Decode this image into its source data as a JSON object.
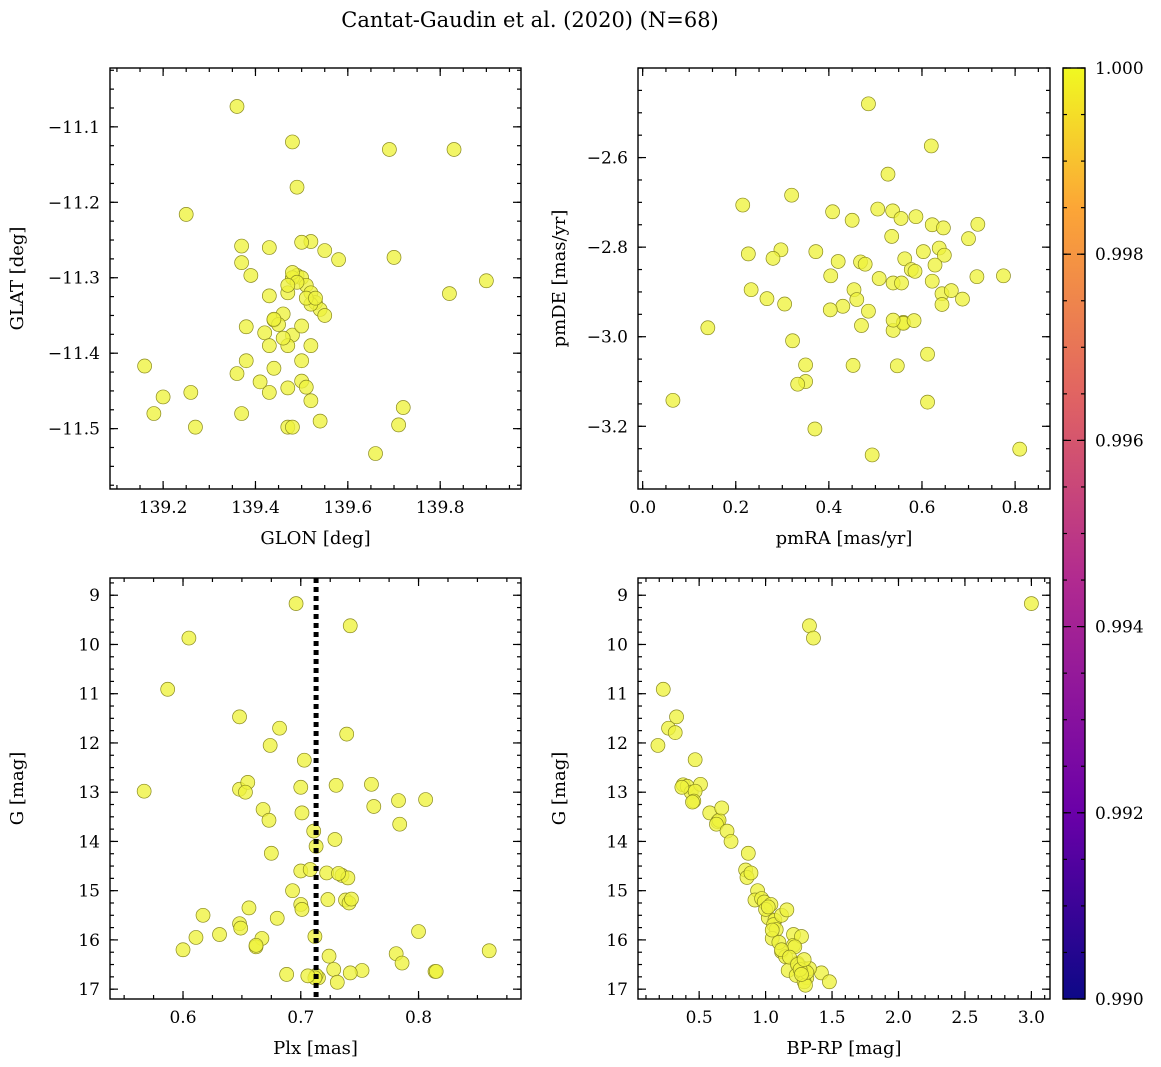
{
  "figure": {
    "title": "Cantat-Gaudin et al. (2020) (N=68)"
  },
  "colors": {
    "point_fill": "#eef23c",
    "point_edge": "#8a8a20",
    "vline": "#000000",
    "colormap": [
      "#0d0887",
      "#6a00a8",
      "#b12a90",
      "#e16462",
      "#fca636",
      "#f0f921"
    ]
  },
  "chart_data": [
    {
      "type": "scatter",
      "name": "sky",
      "xlabel": "GLON [deg]",
      "ylabel": "GLAT [deg]",
      "xlim": [
        139.085,
        139.975
      ],
      "ylim": [
        -11.58,
        -11.022
      ],
      "xticks": [
        139.2,
        139.4,
        139.6,
        139.8
      ],
      "xticklabels": [
        "139.2",
        "139.4",
        "139.6",
        "139.8"
      ],
      "xminor": 0.05,
      "yticks": [
        -11.1,
        -11.2,
        -11.3,
        -11.4,
        -11.5
      ],
      "yticklabels": [
        "−11.1",
        "−11.2",
        "−11.3",
        "−11.4",
        "−11.5"
      ],
      "yminor": 0.025,
      "invert_y": false,
      "x": [
        139.36,
        139.48,
        139.69,
        139.83,
        139.49,
        139.25,
        139.37,
        139.43,
        139.52,
        139.5,
        139.58,
        139.55,
        139.7,
        139.37,
        139.39,
        139.48,
        139.49,
        139.5,
        139.51,
        139.52,
        139.47,
        139.53,
        139.48,
        139.43,
        139.82,
        139.9,
        139.54,
        139.55,
        139.44,
        139.42,
        139.38,
        139.46,
        139.48,
        139.45,
        139.43,
        139.47,
        139.52,
        139.5,
        139.38,
        139.16,
        139.36,
        139.44,
        139.5,
        139.41,
        139.47,
        139.51,
        139.43,
        139.2,
        139.26,
        139.52,
        139.18,
        139.37,
        139.72,
        139.54,
        139.27,
        139.47,
        139.71,
        139.48,
        139.66,
        139.48,
        139.52,
        139.49,
        139.5,
        139.51,
        139.53,
        139.44,
        139.46,
        139.47
      ],
      "y": [
        -11.073,
        -11.12,
        -11.13,
        -11.13,
        -11.18,
        -11.216,
        -11.258,
        -11.26,
        -11.252,
        -11.253,
        -11.276,
        -11.264,
        -11.273,
        -11.28,
        -11.297,
        -11.3,
        -11.297,
        -11.3,
        -11.31,
        -11.32,
        -11.32,
        -11.333,
        -11.3,
        -11.324,
        -11.321,
        -11.304,
        -11.342,
        -11.35,
        -11.356,
        -11.373,
        -11.365,
        -11.348,
        -11.376,
        -11.362,
        -11.39,
        -11.39,
        -11.39,
        -11.41,
        -11.41,
        -11.417,
        -11.427,
        -11.42,
        -11.437,
        -11.438,
        -11.446,
        -11.445,
        -11.452,
        -11.458,
        -11.452,
        -11.463,
        -11.48,
        -11.48,
        -11.472,
        -11.49,
        -11.498,
        -11.498,
        -11.495,
        -11.498,
        -11.533,
        -11.293,
        -11.335,
        -11.306,
        -11.364,
        -11.327,
        -11.327,
        -11.355,
        -11.38,
        -11.31
      ]
    },
    {
      "type": "scatter",
      "name": "proper-motion",
      "xlabel": "pmRA [mas/yr]",
      "ylabel": "pmDE [mas/yr]",
      "xlim": [
        -0.01,
        0.875
      ],
      "ylim": [
        -3.34,
        -2.4
      ],
      "xticks": [
        0.0,
        0.2,
        0.4,
        0.6,
        0.8
      ],
      "xticklabels": [
        "0.0",
        "0.2",
        "0.4",
        "0.6",
        "0.8"
      ],
      "xminor": 0.05,
      "yticks": [
        -2.6,
        -2.8,
        -3.0,
        -3.2
      ],
      "yticklabels": [
        "−2.6",
        "−2.8",
        "−3.0",
        "−3.2"
      ],
      "yminor": 0.05,
      "invert_y": false,
      "x": [
        0.485,
        0.62,
        0.527,
        0.215,
        0.32,
        0.505,
        0.408,
        0.537,
        0.45,
        0.555,
        0.587,
        0.622,
        0.72,
        0.535,
        0.7,
        0.227,
        0.297,
        0.28,
        0.372,
        0.42,
        0.468,
        0.478,
        0.563,
        0.577,
        0.637,
        0.603,
        0.648,
        0.233,
        0.267,
        0.305,
        0.404,
        0.454,
        0.43,
        0.508,
        0.538,
        0.556,
        0.585,
        0.622,
        0.643,
        0.663,
        0.687,
        0.718,
        0.775,
        0.46,
        0.56,
        0.643,
        0.47,
        0.538,
        0.56,
        0.583,
        0.612,
        0.14,
        0.322,
        0.35,
        0.452,
        0.547,
        0.35,
        0.333,
        0.612,
        0.065,
        0.37,
        0.493,
        0.81,
        0.403,
        0.646,
        0.538,
        0.485,
        0.628
      ],
      "y": [
        -2.48,
        -2.574,
        -2.637,
        -2.706,
        -2.684,
        -2.715,
        -2.721,
        -2.719,
        -2.74,
        -2.736,
        -2.732,
        -2.75,
        -2.749,
        -2.776,
        -2.781,
        -2.815,
        -2.806,
        -2.825,
        -2.81,
        -2.832,
        -2.833,
        -2.838,
        -2.826,
        -2.85,
        -2.802,
        -2.81,
        -2.818,
        -2.895,
        -2.915,
        -2.927,
        -2.864,
        -2.895,
        -2.932,
        -2.87,
        -2.88,
        -2.88,
        -2.854,
        -2.876,
        -2.904,
        -2.897,
        -2.916,
        -2.866,
        -2.864,
        -2.917,
        -2.968,
        -2.928,
        -2.975,
        -2.986,
        -2.97,
        -2.964,
        -3.039,
        -2.98,
        -3.009,
        -3.063,
        -3.064,
        -3.065,
        -3.1,
        -3.106,
        -3.146,
        -3.142,
        -3.206,
        -3.264,
        -3.251,
        -2.94,
        -2.757,
        -2.963,
        -2.943,
        -2.84
      ]
    },
    {
      "type": "scatter",
      "name": "parallax-magnitude",
      "xlabel": "Plx [mas]",
      "ylabel": "G [mag]",
      "xlim": [
        0.538,
        0.887
      ],
      "ylim": [
        8.65,
        17.2
      ],
      "xticks": [
        0.6,
        0.7,
        0.8
      ],
      "xticklabels": [
        "0.6",
        "0.7",
        "0.8"
      ],
      "xminor": 0.025,
      "yticks": [
        9,
        10,
        11,
        12,
        13,
        14,
        15,
        16,
        17
      ],
      "yticklabels": [
        "9",
        "10",
        "11",
        "12",
        "13",
        "14",
        "15",
        "16",
        "17"
      ],
      "yminor": 0.25,
      "invert_y": true,
      "vline": 0.713,
      "x": [
        0.696,
        0.742,
        0.605,
        0.587,
        0.648,
        0.682,
        0.674,
        0.739,
        0.703,
        0.567,
        0.648,
        0.655,
        0.73,
        0.76,
        0.653,
        0.7,
        0.783,
        0.806,
        0.668,
        0.762,
        0.673,
        0.784,
        0.729,
        0.701,
        0.711,
        0.675,
        0.713,
        0.722,
        0.735,
        0.74,
        0.738,
        0.693,
        0.656,
        0.723,
        0.7,
        0.701,
        0.617,
        0.648,
        0.7,
        0.708,
        0.732,
        0.741,
        0.743,
        0.667,
        0.68,
        0.631,
        0.6,
        0.611,
        0.712,
        0.715,
        0.724,
        0.662,
        0.713,
        0.752,
        0.728,
        0.649,
        0.662,
        0.742,
        0.8,
        0.781,
        0.786,
        0.814,
        0.731,
        0.815,
        0.688,
        0.712,
        0.706,
        0.86
      ],
      "y": [
        9.17,
        9.62,
        9.87,
        10.91,
        11.47,
        11.7,
        12.05,
        11.82,
        12.35,
        12.98,
        12.94,
        12.8,
        12.86,
        12.84,
        13.0,
        12.9,
        13.17,
        13.15,
        13.35,
        13.29,
        13.57,
        13.65,
        13.96,
        13.42,
        13.79,
        14.24,
        14.1,
        14.64,
        14.69,
        14.74,
        15.19,
        15.0,
        15.35,
        15.18,
        15.28,
        15.38,
        15.5,
        15.67,
        14.6,
        14.57,
        14.65,
        15.25,
        15.17,
        15.97,
        15.56,
        15.89,
        16.2,
        15.95,
        15.93,
        16.77,
        16.33,
        16.14,
        16.72,
        16.62,
        16.6,
        15.76,
        16.11,
        16.67,
        15.83,
        16.28,
        16.47,
        16.64,
        16.86,
        16.64,
        16.7,
        16.77,
        16.73,
        16.22
      ]
    },
    {
      "type": "scatter",
      "name": "color-magnitude",
      "xlabel": "BP-RP [mag]",
      "ylabel": "G [mag]",
      "xlim": [
        0.04,
        3.14
      ],
      "ylim": [
        8.65,
        17.2
      ],
      "xticks": [
        0.5,
        1.0,
        1.5,
        2.0,
        2.5,
        3.0
      ],
      "xticklabels": [
        "0.5",
        "1.0",
        "1.5",
        "2.0",
        "2.5",
        "3.0"
      ],
      "xminor": 0.1,
      "yticks": [
        9,
        10,
        11,
        12,
        13,
        14,
        15,
        16,
        17
      ],
      "yticklabels": [
        "9",
        "10",
        "11",
        "12",
        "13",
        "14",
        "15",
        "16",
        "17"
      ],
      "yminor": 0.25,
      "invert_y": true,
      "x": [
        3.0,
        1.33,
        1.36,
        0.23,
        0.33,
        0.27,
        0.32,
        0.19,
        0.47,
        0.38,
        0.41,
        0.44,
        0.51,
        0.47,
        0.46,
        0.58,
        0.64,
        0.65,
        0.63,
        0.71,
        0.74,
        0.67,
        0.87,
        0.85,
        0.86,
        0.89,
        0.94,
        0.92,
        0.97,
        0.99,
        1.02,
        1.07,
        1.06,
        1.08,
        1.05,
        1.12,
        1.16,
        1.21,
        1.21,
        1.27,
        1.12,
        1.15,
        1.22,
        1.29,
        1.17,
        1.23,
        1.27,
        1.31,
        1.29,
        1.3,
        1.42,
        1.33,
        1.48,
        1.31,
        1.24,
        1.04,
        1.0,
        1.02,
        1.05,
        1.1,
        1.12,
        1.18,
        1.24,
        1.26,
        1.27,
        1.29,
        0.45,
        0.37
      ],
      "y": [
        9.17,
        9.62,
        9.87,
        10.91,
        11.47,
        11.7,
        11.79,
        12.05,
        12.34,
        12.85,
        12.88,
        13.0,
        12.84,
        12.98,
        13.18,
        13.42,
        13.6,
        13.57,
        13.65,
        13.79,
        14.0,
        13.32,
        14.24,
        14.58,
        14.73,
        14.64,
        15.0,
        15.19,
        15.16,
        15.23,
        15.55,
        15.6,
        15.69,
        15.79,
        15.97,
        15.5,
        15.39,
        15.89,
        16.11,
        15.93,
        16.24,
        16.34,
        16.14,
        16.58,
        16.62,
        16.72,
        16.64,
        16.77,
        16.85,
        16.92,
        16.67,
        16.58,
        16.85,
        16.66,
        16.47,
        15.28,
        15.38,
        15.33,
        15.8,
        16.05,
        16.2,
        16.35,
        16.5,
        16.6,
        16.7,
        16.4,
        13.2,
        12.9
      ]
    }
  ],
  "colorbar": {
    "min": 0.99,
    "max": 1.0,
    "ticks": [
      0.99,
      0.992,
      0.994,
      0.996,
      0.998,
      1.0
    ],
    "ticklabels": [
      "0.990",
      "0.992",
      "0.994",
      "0.996",
      "0.998",
      "1.000"
    ],
    "minor": 0.0005
  }
}
